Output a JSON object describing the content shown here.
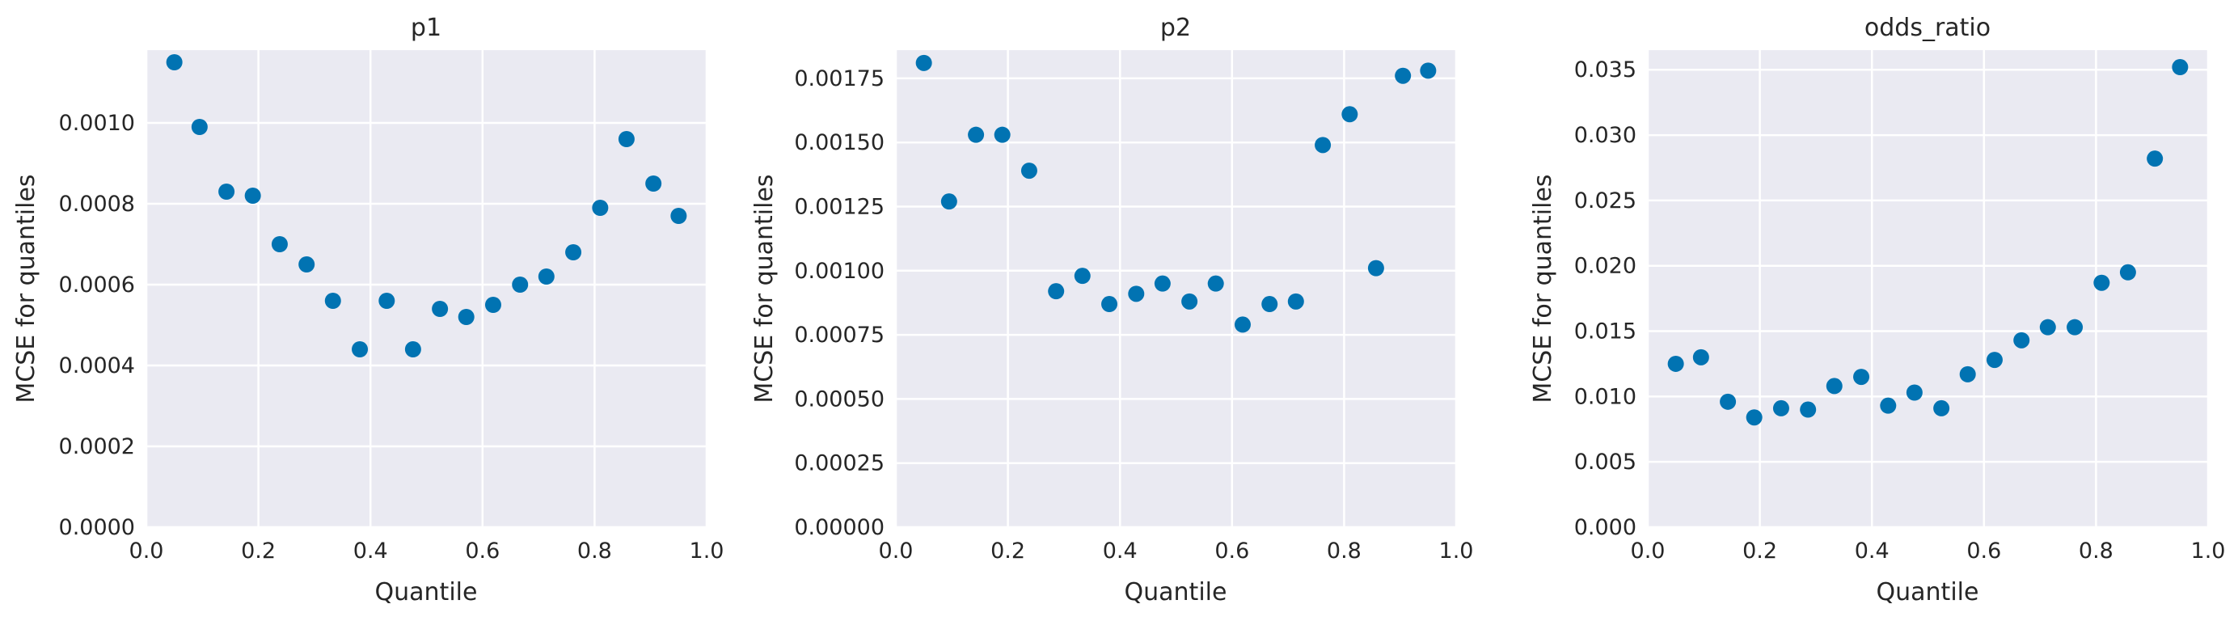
{
  "chart_data": [
    {
      "type": "scatter",
      "title": "p1",
      "xlabel": "Quantile",
      "ylabel": "MCSE for quantiles",
      "xlim": [
        0.0,
        1.0
      ],
      "ylim": [
        0.0,
        0.00118
      ],
      "xticks": [
        0.0,
        0.2,
        0.4,
        0.6,
        0.8,
        1.0
      ],
      "xtick_labels": [
        "0.0",
        "0.2",
        "0.4",
        "0.6",
        "0.8",
        "1.0"
      ],
      "yticks": [
        0.0,
        0.0002,
        0.0004,
        0.0006,
        0.0008,
        0.001
      ],
      "ytick_labels": [
        "0.0000",
        "0.0002",
        "0.0004",
        "0.0006",
        "0.0008",
        "0.0010"
      ],
      "grid": true,
      "color": "#0173b2",
      "x": [
        0.05,
        0.095,
        0.143,
        0.19,
        0.238,
        0.286,
        0.333,
        0.381,
        0.429,
        0.476,
        0.524,
        0.571,
        0.619,
        0.667,
        0.714,
        0.762,
        0.81,
        0.857,
        0.905,
        0.95
      ],
      "y": [
        0.00115,
        0.00099,
        0.00083,
        0.00082,
        0.0007,
        0.00065,
        0.00056,
        0.00044,
        0.00056,
        0.00044,
        0.00054,
        0.00052,
        0.00055,
        0.0006,
        0.00062,
        0.00068,
        0.00079,
        0.00096,
        0.00085,
        0.00077
      ]
    },
    {
      "type": "scatter",
      "title": "p2",
      "xlabel": "Quantile",
      "ylabel": "MCSE for quantiles",
      "xlim": [
        0.0,
        1.0
      ],
      "ylim": [
        0.0,
        0.00186
      ],
      "xticks": [
        0.0,
        0.2,
        0.4,
        0.6,
        0.8,
        1.0
      ],
      "xtick_labels": [
        "0.0",
        "0.2",
        "0.4",
        "0.6",
        "0.8",
        "1.0"
      ],
      "yticks": [
        0.0,
        0.00025,
        0.0005,
        0.00075,
        0.001,
        0.00125,
        0.0015,
        0.00175
      ],
      "ytick_labels": [
        "0.00000",
        "0.00025",
        "0.00050",
        "0.00075",
        "0.00100",
        "0.00125",
        "0.00150",
        "0.00175"
      ],
      "grid": true,
      "color": "#0173b2",
      "x": [
        0.05,
        0.095,
        0.143,
        0.19,
        0.238,
        0.286,
        0.333,
        0.381,
        0.429,
        0.476,
        0.524,
        0.571,
        0.619,
        0.667,
        0.714,
        0.762,
        0.81,
        0.857,
        0.905,
        0.95
      ],
      "y": [
        0.00181,
        0.00127,
        0.00153,
        0.00153,
        0.00139,
        0.00092,
        0.00098,
        0.00087,
        0.00091,
        0.00095,
        0.00088,
        0.00095,
        0.00079,
        0.00087,
        0.00088,
        0.00149,
        0.00161,
        0.00101,
        0.00176,
        0.00178
      ]
    },
    {
      "type": "scatter",
      "title": "odds_ratio",
      "xlabel": "Quantile",
      "ylabel": "MCSE for quantiles",
      "xlim": [
        0.0,
        1.0
      ],
      "ylim": [
        0.0,
        0.0365
      ],
      "xticks": [
        0.0,
        0.2,
        0.4,
        0.6,
        0.8,
        1.0
      ],
      "xtick_labels": [
        "0.0",
        "0.2",
        "0.4",
        "0.6",
        "0.8",
        "1.0"
      ],
      "yticks": [
        0.0,
        0.005,
        0.01,
        0.015,
        0.02,
        0.025,
        0.03,
        0.035
      ],
      "ytick_labels": [
        "0.000",
        "0.005",
        "0.010",
        "0.015",
        "0.020",
        "0.025",
        "0.030",
        "0.035"
      ],
      "grid": true,
      "color": "#0173b2",
      "x": [
        0.05,
        0.095,
        0.143,
        0.19,
        0.238,
        0.286,
        0.333,
        0.381,
        0.429,
        0.476,
        0.524,
        0.571,
        0.619,
        0.667,
        0.714,
        0.762,
        0.81,
        0.857,
        0.905,
        0.95
      ],
      "y": [
        0.0125,
        0.013,
        0.0096,
        0.0084,
        0.0091,
        0.009,
        0.0108,
        0.0115,
        0.0093,
        0.0103,
        0.0091,
        0.0117,
        0.0128,
        0.0143,
        0.0153,
        0.0153,
        0.0187,
        0.0195,
        0.0282,
        0.0352
      ]
    }
  ]
}
